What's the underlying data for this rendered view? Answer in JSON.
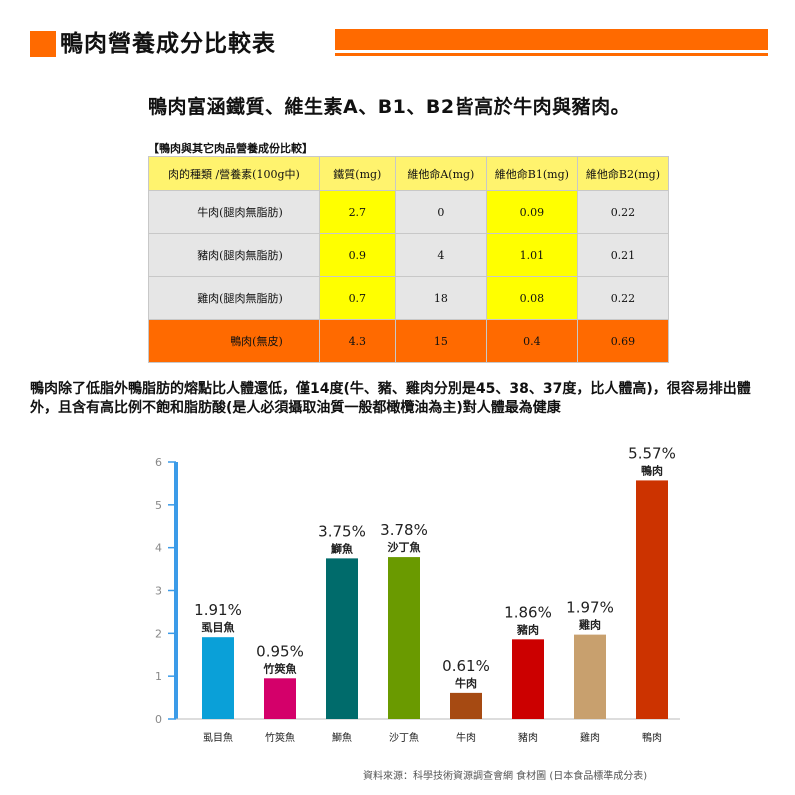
{
  "header": {
    "title": "鴨肉營養成分比較表",
    "accent": "#ff6a00"
  },
  "subtitle": "鴨肉富涵鐵質、維生素A、B1、B2皆高於牛肉與豬肉。",
  "table": {
    "caption": "【鴨肉與其它肉品營養成份比較】",
    "headers": [
      "肉的種類 /營養素(100g中)",
      "鐵質(mg)",
      "維他命A(mg)",
      "維他命B1(mg)",
      "維他命B2(mg)"
    ],
    "rows": [
      {
        "name": "牛肉(腿肉無脂肪)",
        "values": [
          "2.7",
          "0",
          "0.09",
          "0.22"
        ]
      },
      {
        "name": "豬肉(腿肉無脂肪)",
        "values": [
          "0.9",
          "4",
          "1.01",
          "0.21"
        ]
      },
      {
        "name": "雞肉(腿肉無脂肪)",
        "values": [
          "0.7",
          "18",
          "0.08",
          "0.22"
        ]
      },
      {
        "name": "鴨肉(無皮)",
        "values": [
          "4.3",
          "15",
          "0.4",
          "0.69"
        ]
      }
    ]
  },
  "paragraph": "鴨肉除了低脂外鴨脂肪的熔點比人體還低，僅14度(牛、豬、雞肉分別是45、38、37度，比人體高)，很容易排出體外，且含有高比例不飽和脂肪酸(是人必須攝取油質一般都橄欖油為主)對人體最為健康",
  "chart_data": {
    "type": "bar",
    "categories": [
      "虱目魚",
      "竹筴魚",
      "鰤魚",
      "沙丁魚",
      "牛肉",
      "豬肉",
      "雞肉",
      "鴨肉"
    ],
    "values": [
      1.91,
      0.95,
      3.75,
      3.78,
      0.61,
      1.86,
      1.97,
      5.57
    ],
    "value_labels": [
      "1.91%",
      "0.95%",
      "3.75%",
      "3.78%",
      "0.61%",
      "1.86%",
      "1.97%",
      "5.57%"
    ],
    "colors": [
      "#0aa0d8",
      "#d4006a",
      "#006b6b",
      "#6a9a00",
      "#a64a12",
      "#cc0000",
      "#c8a06e",
      "#cc3300"
    ],
    "ylim": [
      0,
      6
    ],
    "yticks": [
      "0",
      "1",
      "2",
      "3",
      "4",
      "5",
      "6"
    ],
    "axis_color": "#3b9be8",
    "grid": false
  },
  "source": "資料來源：科學技術資源調查會網 食材圖 (日本食品標準成分表)"
}
